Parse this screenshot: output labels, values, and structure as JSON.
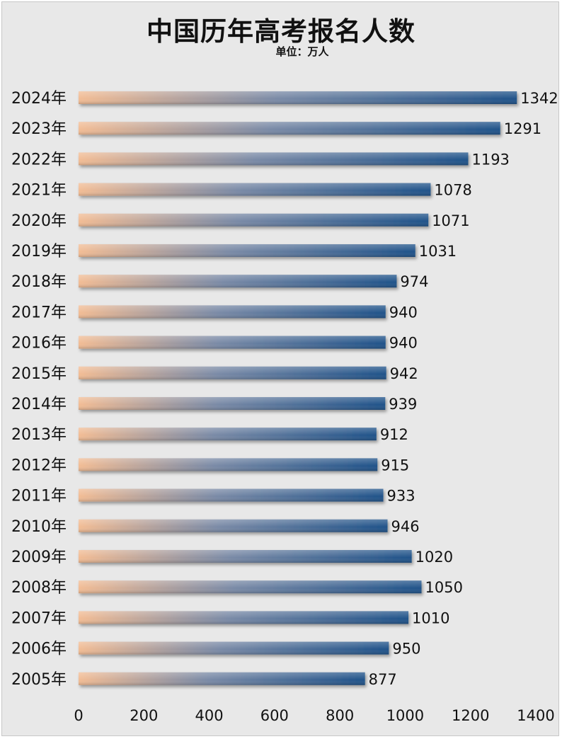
{
  "chart_data": {
    "type": "bar",
    "orientation": "horizontal",
    "title": "中国历年高考报名人数",
    "subtitle": "单位：万人",
    "categories": [
      "2024年",
      "2023年",
      "2022年",
      "2021年",
      "2020年",
      "2019年",
      "2018年",
      "2017年",
      "2016年",
      "2015年",
      "2014年",
      "2013年",
      "2012年",
      "2011年",
      "2010年",
      "2009年",
      "2008年",
      "2007年",
      "2006年",
      "2005年"
    ],
    "values": [
      1342,
      1291,
      1193,
      1078,
      1071,
      1031,
      974,
      940,
      940,
      942,
      939,
      912,
      915,
      933,
      946,
      1020,
      1050,
      1010,
      950,
      877
    ],
    "xlim": [
      0,
      1400
    ],
    "x_ticks": [
      0,
      200,
      400,
      600,
      800,
      1000,
      1200,
      1400
    ],
    "grid": false,
    "data_labels": true,
    "colors": {
      "bar_start": "#f2bc94",
      "bar_end": "#1f5289"
    }
  }
}
